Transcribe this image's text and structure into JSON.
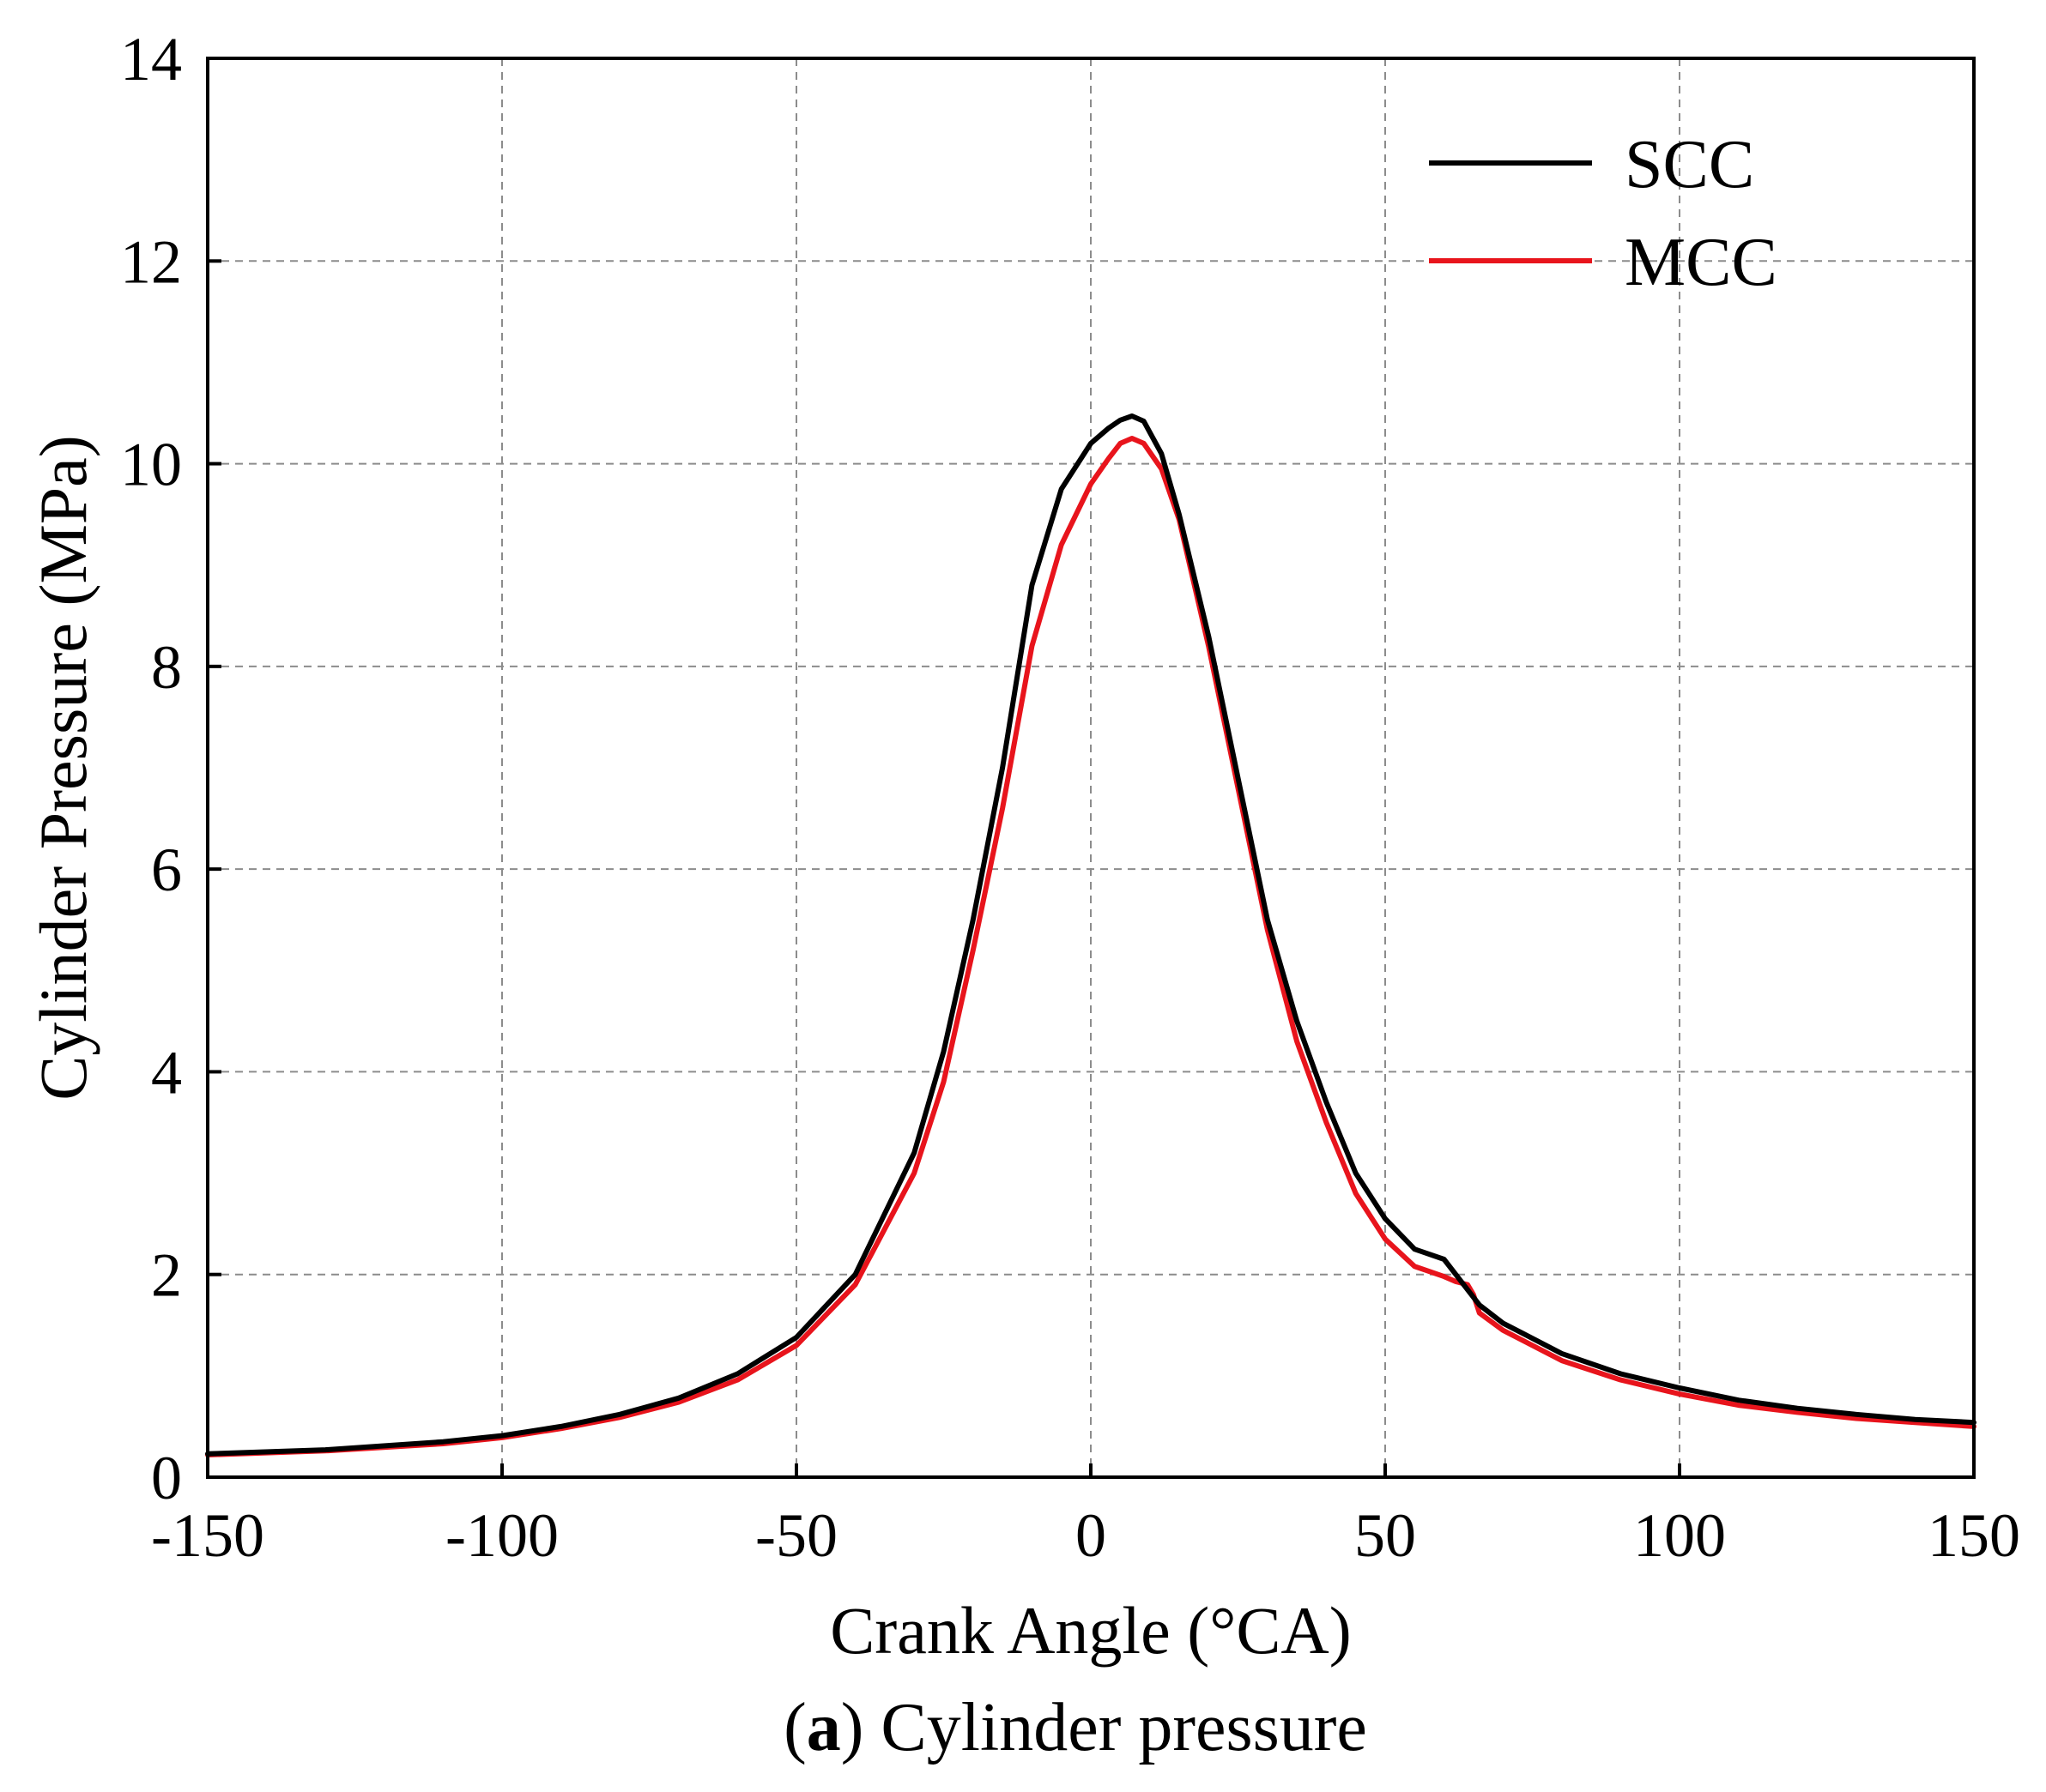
{
  "chart_data": {
    "type": "line",
    "title": "",
    "xlabel": "Crank Angle (°CA)",
    "ylabel": "Cylinder Pressure (MPa)",
    "xlim": [
      -150,
      150
    ],
    "ylim": [
      0,
      14
    ],
    "xticks": [
      -150,
      -100,
      -50,
      0,
      50,
      100,
      150
    ],
    "yticks": [
      0,
      2,
      4,
      6,
      8,
      10,
      12,
      14
    ],
    "xtick_labels": [
      "-150",
      "-100",
      "-50",
      "0",
      "50",
      "100",
      "150"
    ],
    "ytick_labels": [
      "0",
      "2",
      "4",
      "6",
      "8",
      "10",
      "12",
      "14"
    ],
    "grid": true,
    "legend_position": "top-right",
    "caption_label": "a",
    "caption_text": "Cylinder pressure",
    "series": [
      {
        "name": "SCC",
        "color": "#000000",
        "x": [
          -150,
          -130,
          -110,
          -100,
          -90,
          -80,
          -70,
          -60,
          -50,
          -40,
          -30,
          -25,
          -20,
          -15,
          -10,
          -5,
          0,
          3,
          5,
          7,
          9,
          12,
          15,
          20,
          25,
          30,
          35,
          40,
          45,
          50,
          55,
          60,
          62,
          64,
          66,
          70,
          80,
          90,
          100,
          110,
          120,
          130,
          140,
          150
        ],
        "values": [
          0.23,
          0.27,
          0.35,
          0.41,
          0.5,
          0.62,
          0.78,
          1.02,
          1.38,
          2.0,
          3.2,
          4.2,
          5.5,
          7.0,
          8.8,
          9.75,
          10.2,
          10.35,
          10.43,
          10.47,
          10.42,
          10.1,
          9.5,
          8.3,
          6.9,
          5.5,
          4.5,
          3.7,
          3.0,
          2.55,
          2.25,
          2.15,
          2.0,
          1.85,
          1.7,
          1.52,
          1.22,
          1.02,
          0.88,
          0.76,
          0.68,
          0.62,
          0.57,
          0.54
        ]
      },
      {
        "name": "MCC",
        "color": "#e8141c",
        "x": [
          -150,
          -130,
          -110,
          -100,
          -90,
          -80,
          -70,
          -60,
          -50,
          -40,
          -30,
          -25,
          -20,
          -15,
          -10,
          -5,
          0,
          3,
          5,
          7,
          9,
          12,
          15,
          20,
          25,
          30,
          35,
          40,
          45,
          50,
          55,
          60,
          62,
          64,
          65,
          66,
          70,
          80,
          90,
          100,
          110,
          120,
          130,
          140,
          150
        ],
        "values": [
          0.22,
          0.26,
          0.33,
          0.39,
          0.48,
          0.59,
          0.74,
          0.96,
          1.3,
          1.9,
          3.0,
          3.9,
          5.2,
          6.6,
          8.2,
          9.2,
          9.8,
          10.05,
          10.2,
          10.25,
          10.2,
          9.95,
          9.45,
          8.2,
          6.8,
          5.4,
          4.3,
          3.5,
          2.8,
          2.35,
          2.08,
          1.98,
          1.93,
          1.9,
          1.8,
          1.62,
          1.45,
          1.15,
          0.96,
          0.82,
          0.71,
          0.64,
          0.58,
          0.54,
          0.5
        ]
      }
    ]
  }
}
